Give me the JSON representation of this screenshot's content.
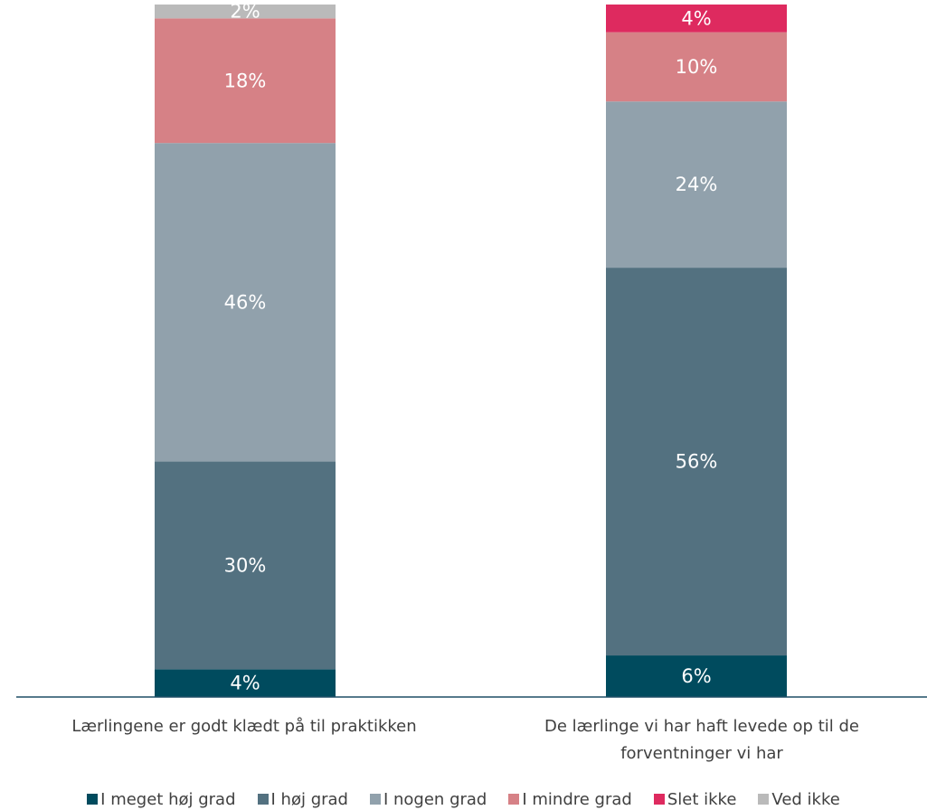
{
  "chart_data": {
    "type": "bar",
    "stacked": true,
    "categories": [
      [
        "Lærlingene er godt klædt på til praktikken"
      ],
      [
        "De lærlinge vi har haft levede op til de",
        "forventninger vi har"
      ]
    ],
    "series": [
      {
        "name": "I meget høj grad",
        "color": "#004B5E",
        "values": [
          4,
          6
        ]
      },
      {
        "name": "I høj grad",
        "color": "#537180",
        "values": [
          30,
          56
        ]
      },
      {
        "name": "I nogen grad",
        "color": "#91A1AC",
        "values": [
          46,
          24
        ]
      },
      {
        "name": "I mindre grad",
        "color": "#D68186",
        "values": [
          18,
          10
        ]
      },
      {
        "name": "Slet ikke",
        "color": "#DE2A5F",
        "values": [
          0,
          4
        ]
      },
      {
        "name": "Ved ikke",
        "color": "#BABABA",
        "values": [
          2,
          0
        ]
      }
    ],
    "value_suffix": "%",
    "ylim": [
      0,
      100
    ],
    "grid": false,
    "legend_position": "bottom",
    "axis_color": "#1F4E66"
  }
}
